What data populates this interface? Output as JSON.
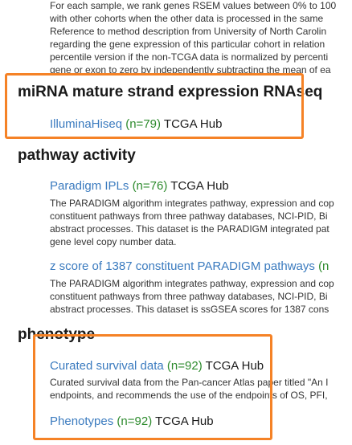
{
  "intro_lines": [
    "For each sample, we rank genes RSEM values between 0% to 100",
    "with other cohorts when the other data is processed in the same",
    "Reference to method description from University of North Carolin",
    "regarding the gene expression of this particular cohort in relation",
    "percentile version if the non-TCGA data is normalized by percenti",
    "gene or exon to zero by independently subtracting the mean of ea"
  ],
  "sections": [
    {
      "title": "miRNA mature strand expression RNAseq",
      "datasets": [
        {
          "name": "IlluminaHiseq",
          "count": "(n=79)",
          "hub": "TCGA Hub",
          "description": []
        }
      ]
    },
    {
      "title": "pathway activity",
      "datasets": [
        {
          "name": "Paradigm IPLs",
          "count": "(n=76)",
          "hub": "TCGA Hub",
          "description": [
            "The PARADIGM algorithm integrates pathway, expression and cop",
            "constituent pathways from three pathway databases, NCI-PID, Bi",
            "abstract processes. This dataset is the PARADIGM integrated pat",
            "gene level copy number data."
          ]
        },
        {
          "name": "z score of 1387 constituent PARADIGM pathways",
          "count": "(n",
          "hub": "",
          "description": [
            "The PARADIGM algorithm integrates pathway, expression and cop",
            "constituent pathways from three pathway databases, NCI-PID, Bi",
            "abstract processes. This dataset is ssGSEA scores for 1387 cons"
          ]
        }
      ]
    },
    {
      "title": "phenotype",
      "datasets": [
        {
          "name": "Curated survival data",
          "count": "(n=92)",
          "hub": "TCGA Hub",
          "description": [
            "Curated survival data from the Pan-cancer Atlas paper titled \"An I",
            "endpoints, and recommends the use of the endpoints of OS, PFI,"
          ]
        },
        {
          "name": "Phenotypes",
          "count": "(n=92)",
          "hub": "TCGA Hub",
          "description": []
        }
      ]
    }
  ],
  "colors": {
    "link": "#3b7bbf",
    "count": "#2e8b2e",
    "highlight": "#f58226"
  }
}
